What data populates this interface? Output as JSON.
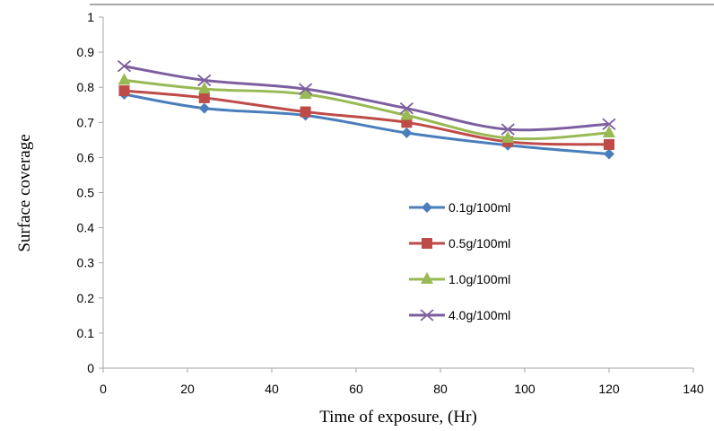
{
  "chart_data": {
    "type": "line",
    "title": "",
    "xlabel": "Time of exposure, (Hr)",
    "ylabel": "Surface coverage",
    "xlim": [
      0,
      140
    ],
    "ylim": [
      0,
      1
    ],
    "xticks": [
      0,
      20,
      40,
      60,
      80,
      100,
      120,
      140
    ],
    "xtick_labels": [
      "0",
      "20",
      "40",
      "60",
      "80",
      "100",
      "120",
      "140"
    ],
    "yticks": [
      0,
      0.1,
      0.2,
      0.3,
      0.4,
      0.5,
      0.6,
      0.7,
      0.8,
      0.9,
      1
    ],
    "ytick_labels": [
      "0",
      "0.1",
      "0.2",
      "0.3",
      "0.4",
      "0.5",
      "0.6",
      "0.7",
      "0.8",
      "0.9",
      "1"
    ],
    "grid": false,
    "smooth": true,
    "legend_position": "center-right",
    "x": [
      5,
      24,
      48,
      72,
      96,
      120
    ],
    "series": [
      {
        "name": "0.1g/100ml",
        "color": "#4a7ebb",
        "marker": "diamond",
        "values": [
          0.78,
          0.74,
          0.72,
          0.67,
          0.635,
          0.61
        ]
      },
      {
        "name": "0.5g/100ml",
        "color": "#be4b48",
        "marker": "square",
        "values": [
          0.79,
          0.77,
          0.73,
          0.7,
          0.645,
          0.637
        ]
      },
      {
        "name": "1.0g/100ml",
        "color": "#98b954",
        "marker": "triangle",
        "values": [
          0.82,
          0.795,
          0.78,
          0.72,
          0.655,
          0.67
        ]
      },
      {
        "name": "4.0g/100ml",
        "color": "#7d5fa0",
        "marker": "x",
        "values": [
          0.86,
          0.82,
          0.795,
          0.74,
          0.68,
          0.695
        ]
      }
    ]
  }
}
